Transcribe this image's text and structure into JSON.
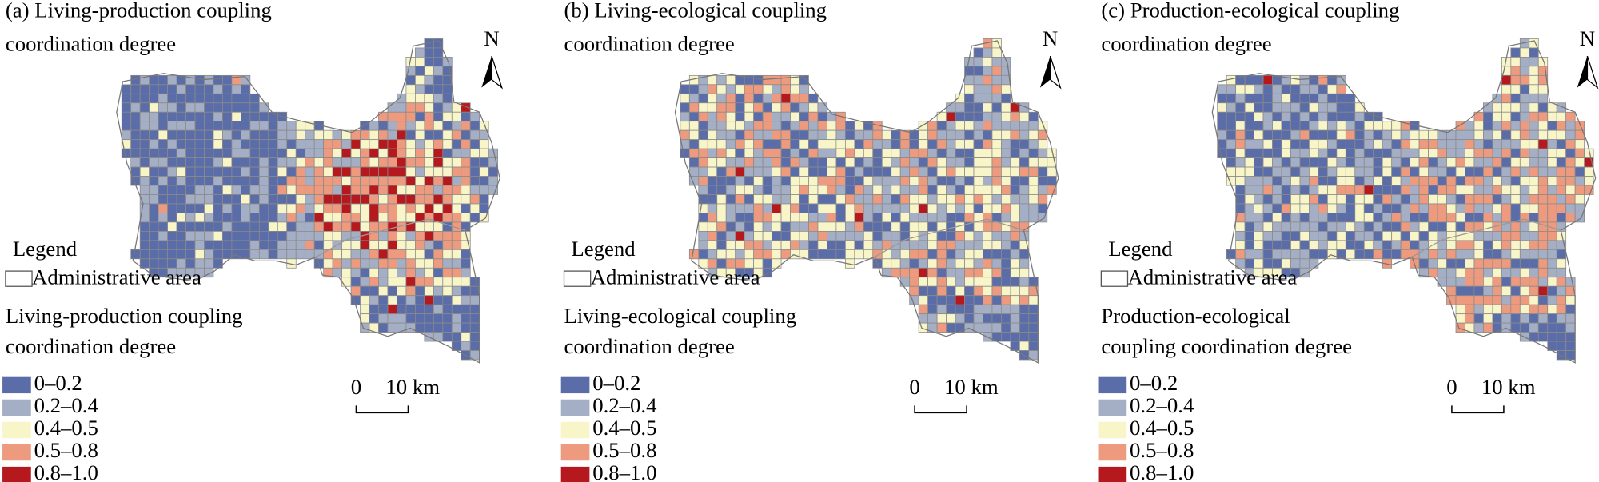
{
  "panels": [
    {
      "title": [
        "(a)  Living-production coupling",
        "coordination degree"
      ],
      "north": "N",
      "legend_heading": "Legend",
      "admin_label": "Administrative area",
      "legend_title": [
        "Living-production coupling",
        "coordination degree"
      ],
      "classes": [
        {
          "label": "0–0.2",
          "color": "#5b6da8"
        },
        {
          "label": "0.2–0.4",
          "color": "#a4aec4"
        },
        {
          "label": "0.4–0.5",
          "color": "#f8f5c8"
        },
        {
          "label": "0.5–0.8",
          "color": "#ee9a7e"
        },
        {
          "label": "0.8–1.0",
          "color": "#b5191d"
        }
      ],
      "scale": [
        "0",
        "10 km"
      ]
    },
    {
      "title": [
        "(b) Living-ecological coupling",
        "coordination degree"
      ],
      "north": "N",
      "legend_heading": "Legend",
      "admin_label": "Administrative area",
      "legend_title": [
        "Living-ecological coupling",
        "coordination degree"
      ],
      "classes": [
        {
          "label": "0–0.2",
          "color": "#5b6da8"
        },
        {
          "label": "0.2–0.4",
          "color": "#a4aec4"
        },
        {
          "label": "0.4–0.5",
          "color": "#f8f5c8"
        },
        {
          "label": "0.5–0.8",
          "color": "#ee9a7e"
        },
        {
          "label": "0.8–1.0",
          "color": "#b5191d"
        }
      ],
      "scale": [
        "0",
        "10 km"
      ]
    },
    {
      "title": [
        "(c) Production-ecological coupling",
        "coordination degree"
      ],
      "north": "N",
      "legend_heading": "Legend",
      "admin_label": "Administrative area",
      "legend_title": [
        "Production-ecological",
        "coupling  coordination degree"
      ],
      "classes": [
        {
          "label": "0–0.2",
          "color": "#5b6da8"
        },
        {
          "label": "0.2–0.4",
          "color": "#a4aec4"
        },
        {
          "label": "0.4–0.5",
          "color": "#f8f5c8"
        },
        {
          "label": "0.5–0.8",
          "color": "#ee9a7e"
        },
        {
          "label": "0.8–1.0",
          "color": "#b5191d"
        }
      ],
      "scale": [
        "0",
        "10 km"
      ]
    }
  ]
}
